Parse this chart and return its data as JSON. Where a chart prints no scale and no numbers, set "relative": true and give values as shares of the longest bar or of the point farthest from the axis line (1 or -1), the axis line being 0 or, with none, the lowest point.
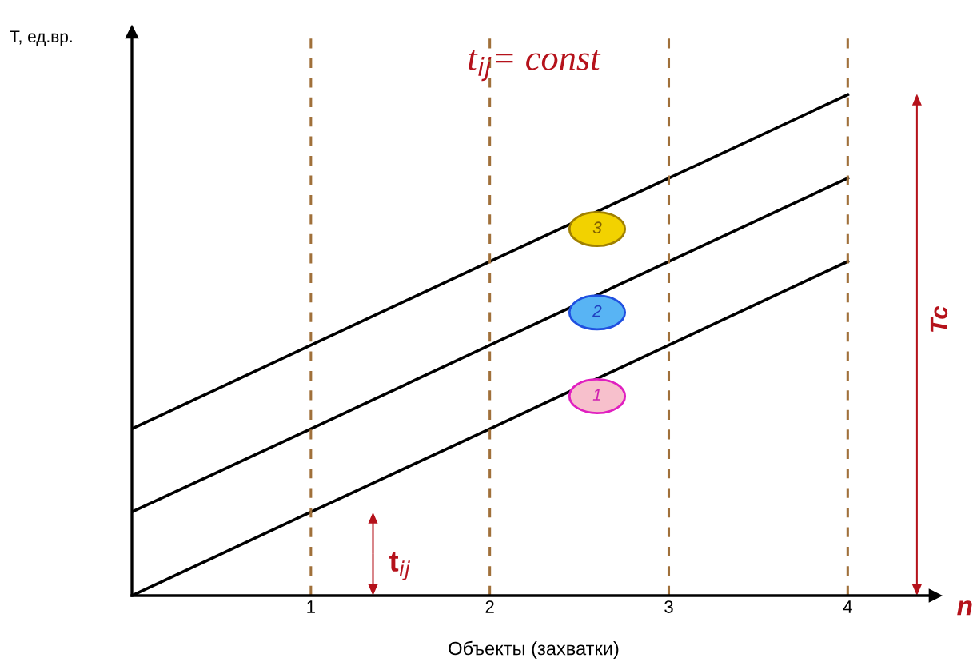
{
  "chart_data": {
    "type": "line",
    "relative": true,
    "title": "t$_{ij}$= const",
    "xlabel": "Объекты (захватки)",
    "ylabel": "T, ед.вр.",
    "x": [
      0,
      1,
      2,
      3,
      4
    ],
    "xlim": [
      0,
      4.49
    ],
    "xticks": [
      1,
      2,
      3,
      4
    ],
    "grid": false,
    "marker": "none",
    "line_style": "solid",
    "series": [
      {
        "name": "1",
        "color": "#000000",
        "values": [
          0,
          0.167,
          0.333,
          0.5,
          0.667
        ]
      },
      {
        "name": "2",
        "color": "#000000",
        "values": [
          0.167,
          0.333,
          0.5,
          0.667,
          0.833
        ]
      },
      {
        "name": "3",
        "color": "#000000",
        "values": [
          0.333,
          0.5,
          0.667,
          0.833,
          1
        ]
      }
    ],
    "ref_lines": [
      {
        "axis": "x",
        "value": 1,
        "color": "#a0703a",
        "line_style": "dashed"
      },
      {
        "axis": "x",
        "value": 2,
        "color": "#a0703a",
        "line_style": "dashed"
      },
      {
        "axis": "x",
        "value": 3,
        "color": "#a0703a",
        "line_style": "dashed"
      },
      {
        "axis": "x",
        "value": 4,
        "color": "#a0703a",
        "line_style": "dashed"
      }
    ],
    "annotations": [
      "t$_{ij}$",
      "Tc",
      "n"
    ]
  }
}
